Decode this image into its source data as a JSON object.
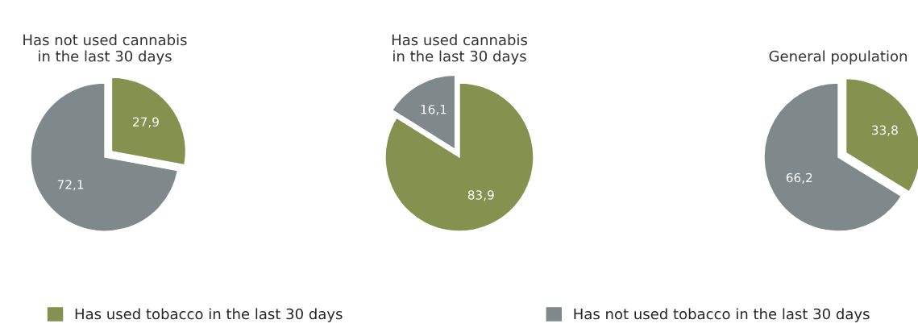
{
  "chart_data": [
    {
      "type": "pie",
      "title": "Has not used cannabis\nin the last 30 days",
      "categories": [
        "Has used tobacco in the last 30 days",
        "Has not used tobacco in the last 30 days"
      ],
      "values": [
        27.9,
        72.1
      ],
      "value_labels": [
        "27,9",
        "72,1"
      ],
      "colors": [
        "#85924f",
        "#7f898b"
      ],
      "legend": "bottom"
    },
    {
      "type": "pie",
      "title": "Has used cannabis\nin the last 30 days",
      "values": [
        83.9,
        16.1
      ],
      "value_labels": [
        "83,9",
        "16,1"
      ],
      "colors": [
        "#85924f",
        "#7f898b"
      ]
    },
    {
      "type": "pie",
      "title": "General population",
      "values": [
        33.8,
        66.2
      ],
      "value_labels": [
        "33,8",
        "66,2"
      ],
      "colors": [
        "#85924f",
        "#7f898b"
      ]
    }
  ]
}
